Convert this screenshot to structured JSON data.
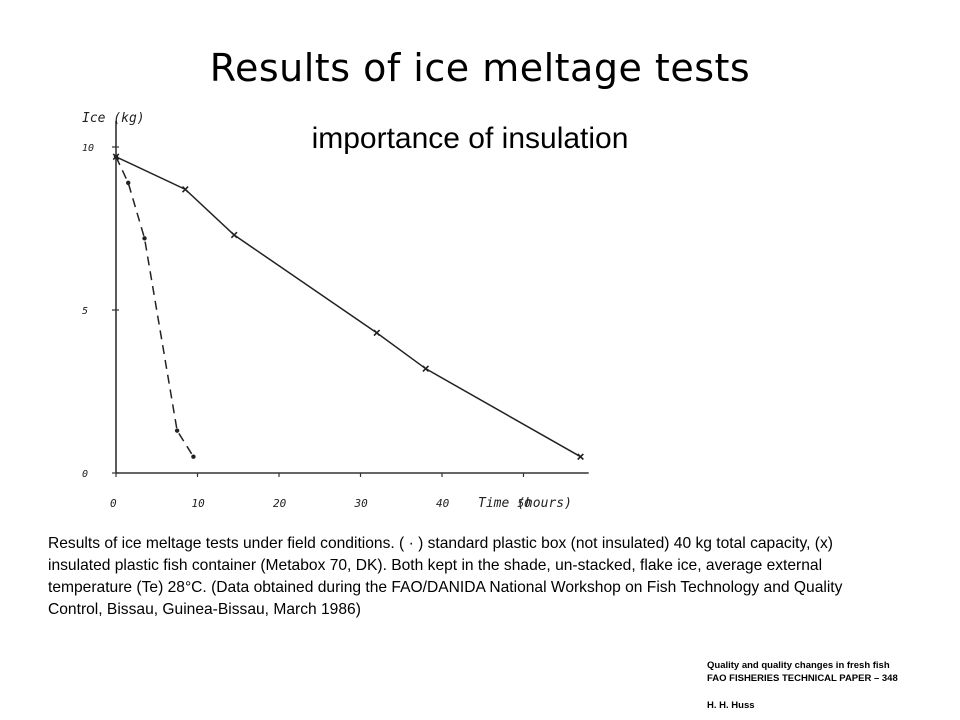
{
  "title": "Results of ice meltage tests",
  "subtitle": "importance of insulation",
  "caption": "Results of ice meltage tests under field conditions. ( · ) standard plastic box (not insulated) 40 kg total capacity, (x) insulated plastic fish container (Metabox 70, DK). Both kept in the shade, un-stacked, flake ice, average external temperature (Te) 28°C. (Data obtained during the FAO/DANIDA National Workshop on Fish Technology and Quality Control, Bissau, Guinea-Bissau, March 1986)",
  "source": {
    "line1": "Quality and quality changes in fresh fish",
    "line2": "FAO FISHERIES TECHNICAL PAPER – 348",
    "author": "H. H. Huss"
  },
  "chart_data": {
    "type": "line",
    "xlabel": "Time (hours)",
    "ylabel": "Ice (kg)",
    "xlim": [
      0,
      58
    ],
    "ylim": [
      0,
      10.5
    ],
    "xticks": [
      "0",
      "10",
      "20",
      "30",
      "40",
      "50"
    ],
    "yticks": [
      "0",
      "5",
      "10"
    ],
    "grid": false,
    "series": [
      {
        "marker": "dot",
        "style": "dashed",
        "color": "#222222",
        "x": [
          0,
          1.5,
          3.5,
          7.5,
          9.5
        ],
        "y": [
          9.7,
          8.9,
          7.2,
          1.3,
          0.5
        ]
      },
      {
        "marker": "x",
        "style": "solid",
        "color": "#222222",
        "x": [
          0,
          8.5,
          14.5,
          32,
          38,
          57
        ],
        "y": [
          9.7,
          8.7,
          7.3,
          4.3,
          3.2,
          0.5
        ]
      }
    ]
  }
}
